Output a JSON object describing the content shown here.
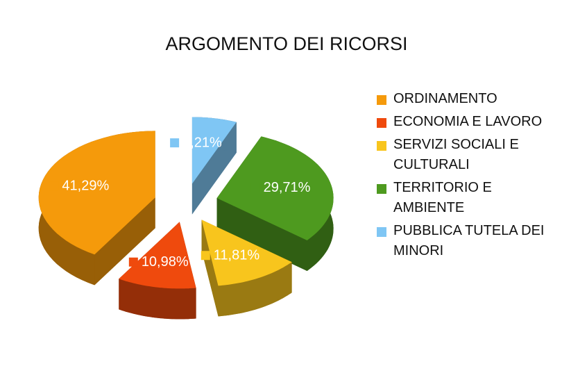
{
  "chart_data": {
    "type": "pie",
    "title": "ARGOMENTO DEI RICORSI",
    "categories": [
      "ORDINAMENTO",
      "ECONOMIA E LAVORO",
      "SERVIZI SOCIALI E CULTURALI",
      "TERRITORIO E AMBIENTE",
      "PUBBLICA TUTELA DEI MINORI"
    ],
    "values": [
      41.29,
      10.98,
      11.81,
      29.71,
      6.21
    ],
    "value_labels": [
      "41,29%",
      "10,98%",
      "11,81%",
      "29,71%",
      "6,21%"
    ],
    "colors": [
      "#f59a0b",
      "#ef4a0d",
      "#f8c51d",
      "#4e9a1f",
      "#7fc6f4"
    ],
    "legend": "right"
  }
}
